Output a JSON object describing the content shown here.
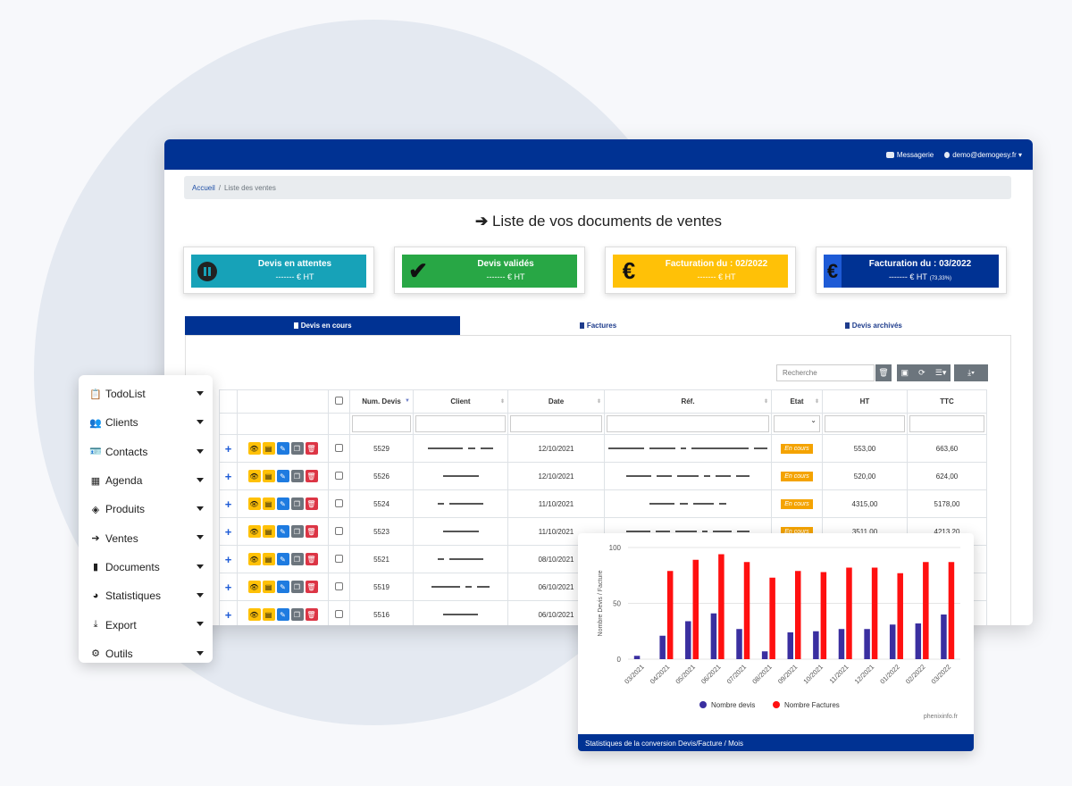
{
  "topbar": {
    "messaging": "Messagerie",
    "user": "demo@demogesy.fr"
  },
  "breadcrumb": {
    "home": "Accueil",
    "sep": "/",
    "current": "Liste des ventes"
  },
  "page_title": "Liste de vos documents de ventes",
  "cards": [
    {
      "title": "Devis en attentes",
      "value": "------- € HT",
      "note": "",
      "color": "#17a2b8"
    },
    {
      "title": "Devis validés",
      "value": "------- € HT",
      "note": "",
      "color": "#28a745"
    },
    {
      "title": "Facturation du : 02/2022",
      "value": "------- € HT",
      "note": "",
      "color": "#ffc107"
    },
    {
      "title": "Facturation du : 03/2022",
      "value": "------- € HT",
      "note": "(73,33%)",
      "color": "#003293"
    }
  ],
  "tabs": [
    "Devis en cours",
    "Factures",
    "Devis archivés"
  ],
  "search_placeholder": "Recherche",
  "table": {
    "headers": [
      "Num. Devis",
      "Client",
      "Date",
      "Réf.",
      "Etat",
      "HT",
      "TTC"
    ],
    "rows": [
      {
        "num": "5529",
        "date": "12/10/2021",
        "etat": "En cours",
        "ht": "553,00",
        "ttc": "663,60"
      },
      {
        "num": "5526",
        "date": "12/10/2021",
        "etat": "En cours",
        "ht": "520,00",
        "ttc": "624,00"
      },
      {
        "num": "5524",
        "date": "11/10/2021",
        "etat": "En cours",
        "ht": "4315,00",
        "ttc": "5178,00"
      },
      {
        "num": "5523",
        "date": "11/10/2021",
        "etat": "En cours",
        "ht": "3511,00",
        "ttc": "4213,20"
      },
      {
        "num": "5521",
        "date": "08/10/2021",
        "etat": "",
        "ht": "",
        "ttc": ""
      },
      {
        "num": "5519",
        "date": "06/10/2021",
        "etat": "",
        "ht": "",
        "ttc": ""
      },
      {
        "num": "5516",
        "date": "06/10/2021",
        "etat": "",
        "ht": "",
        "ttc": ""
      }
    ]
  },
  "menu": [
    {
      "label": "TodoList",
      "icon": "clipboard-icon"
    },
    {
      "label": "Clients",
      "icon": "users-icon"
    },
    {
      "label": "Contacts",
      "icon": "id-card-icon"
    },
    {
      "label": "Agenda",
      "icon": "calendar-icon"
    },
    {
      "label": "Produits",
      "icon": "cubes-icon"
    },
    {
      "label": "Ventes",
      "icon": "arrow-right-icon"
    },
    {
      "label": "Documents",
      "icon": "file-icon"
    },
    {
      "label": "Statistiques",
      "icon": "pie-chart-icon"
    },
    {
      "label": "Export",
      "icon": "download-icon"
    },
    {
      "label": "Outils",
      "icon": "gears-icon"
    }
  ],
  "chart_data": {
    "type": "bar",
    "title": "",
    "ylabel": "Nombre Devis / Facture",
    "xlabel": "",
    "ylim": [
      0,
      100
    ],
    "yticks": [
      "0",
      "50",
      "100"
    ],
    "categories": [
      "03/2021",
      "04/2021",
      "05/2021",
      "06/2021",
      "07/2021",
      "08/2021",
      "09/2021",
      "10/2021",
      "11/2021",
      "12/2021",
      "01/2022",
      "02/2022",
      "03/2022"
    ],
    "series": [
      {
        "name": "Nombre devis",
        "color": "#3a2fa0",
        "values": [
          3,
          21,
          34,
          41,
          27,
          7,
          24,
          25,
          27,
          27,
          31,
          32,
          40
        ]
      },
      {
        "name": "Nombre Factures",
        "color": "#ff1010",
        "values": [
          0,
          79,
          89,
          94,
          87,
          73,
          79,
          78,
          82,
          82,
          77,
          87,
          87
        ]
      }
    ],
    "legend": "bottom",
    "credit": "phenixinfo.fr",
    "footer": "Statistiques de la conversion Devis/Facture / Mois"
  }
}
